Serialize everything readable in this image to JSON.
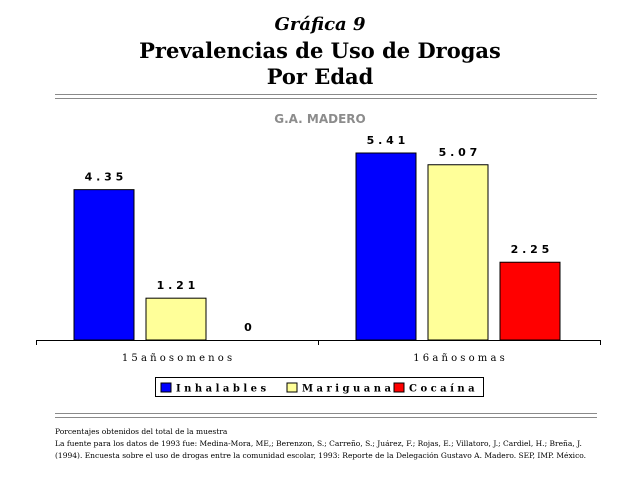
{
  "header": {
    "graph_number": "Gráfica 9",
    "title_line1": "Prevalencias de Uso de Drogas",
    "title_line2": "Por Edad"
  },
  "chart_data": {
    "type": "bar",
    "title": "G.A. MADERO",
    "categories": [
      "1 5  a ñ o s  o  m e n o s",
      "1 6  a ñ o s  o  m a s"
    ],
    "series": [
      {
        "name": "I n h a l a b l e s",
        "color": "#0000ff",
        "values": [
          4.35,
          5.41
        ],
        "labels": [
          "4 . 3 5",
          "5 . 4 1"
        ]
      },
      {
        "name": "M a r i g u a n a",
        "color": "#ffff99",
        "values": [
          1.21,
          5.07
        ],
        "labels": [
          "1 . 2 1",
          "5 . 0 7"
        ]
      },
      {
        "name": "C o c a í n a",
        "color": "#ff0000",
        "values": [
          0,
          2.25
        ],
        "labels": [
          "0",
          "2 . 2 5"
        ]
      }
    ],
    "ylim": [
      0,
      5.41
    ],
    "legend_position": "bottom",
    "grid": false
  },
  "footer": {
    "line1": "Porcentajes obtenidos del total de la muestra",
    "line2": "La fuente para los datos de 1993 fue: Medina-Mora, ME,; Berenzon, S.; Carreño, S.; Juárez, F.; Rojas, E.; Villatoro, J.; Cardiel, H.; Breña, J.",
    "line3": "(1994). Encuesta sobre el uso de drogas entre la comunidad escolar, 1993: Reporte de la Delegación Gustavo A. Madero. SEP, IMP. México."
  }
}
